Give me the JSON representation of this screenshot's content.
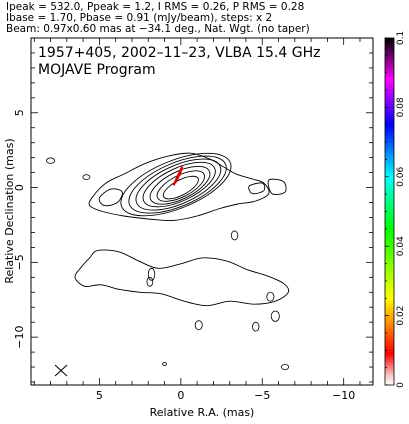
{
  "header": {
    "line1": "Ipeak = 532.0, Ppeak = 1.2, I RMS = 0.26, P RMS = 0.28",
    "line2": "Ibase = 1.70, Pbase = 0.91 (mJy/beam), steps: x 2",
    "line3": "Beam: 0.97x0.60 mas at −34.1 deg., Nat. Wgt. (no taper)"
  },
  "plot": {
    "source_line": "1957+405, 2002–11–23, VLBA 15.4 GHz",
    "program_line": "MOJAVE Program",
    "beam_marker": "ellipse-cross-icon"
  },
  "chart_data": {
    "type": "contour",
    "xlabel": "Relative R.A. (mas)",
    "ylabel": "Relative Declination (mas)",
    "xlim": [
      9.2,
      -11.8
    ],
    "ylim": [
      -13.2,
      10.0
    ],
    "x_ticks": [
      {
        "value": 5,
        "label": "5"
      },
      {
        "value": 0,
        "label": "0"
      },
      {
        "value": -5,
        "label": "−5"
      },
      {
        "value": -10,
        "label": "−10"
      }
    ],
    "y_ticks": [
      {
        "value": 5,
        "label": "5"
      },
      {
        "value": 0,
        "label": "0"
      },
      {
        "value": -5,
        "label": "−5"
      },
      {
        "value": -10,
        "label": "−10"
      }
    ],
    "core_contours": [
      {
        "cx": 0.0,
        "cy": 0.0,
        "rx": 1.2,
        "ry": 0.5,
        "angle": 28
      },
      {
        "cx": 0.0,
        "cy": 0.1,
        "rx": 1.6,
        "ry": 0.72,
        "angle": 27
      },
      {
        "cx": 0.05,
        "cy": 0.15,
        "rx": 2.0,
        "ry": 0.92,
        "angle": 26
      },
      {
        "cx": 0.1,
        "cy": 0.2,
        "rx": 2.4,
        "ry": 1.1,
        "angle": 25
      },
      {
        "cx": 0.15,
        "cy": 0.2,
        "rx": 2.8,
        "ry": 1.28,
        "angle": 24
      },
      {
        "cx": 0.2,
        "cy": 0.2,
        "rx": 3.2,
        "ry": 1.45,
        "angle": 23
      },
      {
        "cx": 0.3,
        "cy": 0.2,
        "rx": 3.6,
        "ry": 1.6,
        "angle": 22
      }
    ],
    "outer_contour": [
      [
        5.4,
        -0.6
      ],
      [
        4.6,
        0.3
      ],
      [
        3.5,
        0.9
      ],
      [
        2.2,
        1.6
      ],
      [
        0.8,
        2.1
      ],
      [
        -0.6,
        2.3
      ],
      [
        -1.8,
        1.9
      ],
      [
        -2.6,
        1.4
      ],
      [
        -3.4,
        0.9
      ],
      [
        -4.3,
        0.6
      ],
      [
        -5.1,
        0.3
      ],
      [
        -5.4,
        -0.4
      ],
      [
        -4.6,
        -0.9
      ],
      [
        -3.5,
        -1.1
      ],
      [
        -2.4,
        -1.4
      ],
      [
        -1.0,
        -1.9
      ],
      [
        0.5,
        -2.2
      ],
      [
        2.0,
        -2.1
      ],
      [
        3.5,
        -1.9
      ],
      [
        4.8,
        -1.6
      ],
      [
        5.6,
        -1.2
      ]
    ],
    "inner_contours": [
      {
        "points": [
          [
            5.0,
            -0.7
          ],
          [
            4.3,
            -0.1
          ],
          [
            3.6,
            -0.3
          ],
          [
            3.9,
            -1.0
          ],
          [
            4.7,
            -1.2
          ]
        ]
      },
      {
        "points": [
          [
            -4.2,
            0.1
          ],
          [
            -5.0,
            0.3
          ],
          [
            -5.1,
            -0.2
          ],
          [
            -4.4,
            -0.4
          ]
        ]
      },
      {
        "points": [
          [
            -5.4,
            0.5
          ],
          [
            -6.3,
            0.4
          ],
          [
            -6.4,
            -0.3
          ],
          [
            -5.6,
            -0.4
          ]
        ]
      }
    ],
    "extended_contour": [
      [
        5.1,
        -4.2
      ],
      [
        3.8,
        -4.3
      ],
      [
        2.6,
        -4.9
      ],
      [
        1.4,
        -5.4
      ],
      [
        0.0,
        -5.1
      ],
      [
        -1.3,
        -4.7
      ],
      [
        -2.8,
        -4.9
      ],
      [
        -4.1,
        -5.5
      ],
      [
        -5.3,
        -5.9
      ],
      [
        -6.3,
        -6.4
      ],
      [
        -6.6,
        -7.0
      ],
      [
        -5.8,
        -7.6
      ],
      [
        -4.5,
        -7.8
      ],
      [
        -3.0,
        -7.6
      ],
      [
        -1.6,
        -7.9
      ],
      [
        -0.2,
        -7.6
      ],
      [
        1.2,
        -7.1
      ],
      [
        2.5,
        -7.0
      ],
      [
        3.8,
        -6.8
      ],
      [
        4.9,
        -6.5
      ],
      [
        5.9,
        -6.6
      ],
      [
        6.5,
        -6.0
      ],
      [
        6.1,
        -5.3
      ],
      [
        5.6,
        -4.7
      ]
    ],
    "small_components": [
      {
        "cx": 8.0,
        "cy": 1.8,
        "rx": 0.25,
        "ry": 0.18
      },
      {
        "cx": 5.8,
        "cy": 0.7,
        "rx": 0.22,
        "ry": 0.16
      },
      {
        "cx": -3.3,
        "cy": -3.2,
        "rx": 0.2,
        "ry": 0.3
      },
      {
        "cx": 1.8,
        "cy": -5.8,
        "rx": 0.2,
        "ry": 0.4
      },
      {
        "cx": 1.9,
        "cy": -6.3,
        "rx": 0.18,
        "ry": 0.3
      },
      {
        "cx": -5.5,
        "cy": -7.3,
        "rx": 0.22,
        "ry": 0.3
      },
      {
        "cx": -5.8,
        "cy": -8.6,
        "rx": 0.25,
        "ry": 0.35
      },
      {
        "cx": -4.6,
        "cy": -9.3,
        "rx": 0.2,
        "ry": 0.3
      },
      {
        "cx": -1.1,
        "cy": -9.2,
        "rx": 0.22,
        "ry": 0.3
      },
      {
        "cx": 1.0,
        "cy": -11.8,
        "rx": 0.12,
        "ry": 0.1
      },
      {
        "cx": -6.4,
        "cy": -12.0,
        "rx": 0.22,
        "ry": 0.18
      }
    ],
    "polarization": [
      {
        "x": 0.1,
        "y": 0.9,
        "len": 0.8,
        "angle": 70
      },
      {
        "x": 0.2,
        "y": 0.7,
        "len": 0.8,
        "angle": 68
      },
      {
        "x": 0.3,
        "y": 0.5,
        "len": 0.7,
        "angle": 66
      },
      {
        "x": 0.0,
        "y": 1.1,
        "len": 0.6,
        "angle": 72
      }
    ],
    "colorbar": {
      "vmin": 0.0,
      "vmax": 0.1,
      "ticks": [
        {
          "value": 0.0,
          "label": "0"
        },
        {
          "value": 0.02,
          "label": "0.02"
        },
        {
          "value": 0.04,
          "label": "0.04"
        },
        {
          "value": 0.06,
          "label": "0.06"
        },
        {
          "value": 0.08,
          "label": "0.08"
        },
        {
          "value": 0.1,
          "label": "0.1"
        }
      ],
      "gradient": [
        "#ffffff",
        "#f7c0c0",
        "#ff0000",
        "#ffff00",
        "#00ff00",
        "#00ffff",
        "#0000ff",
        "#ff00ff",
        "#000000"
      ]
    }
  }
}
